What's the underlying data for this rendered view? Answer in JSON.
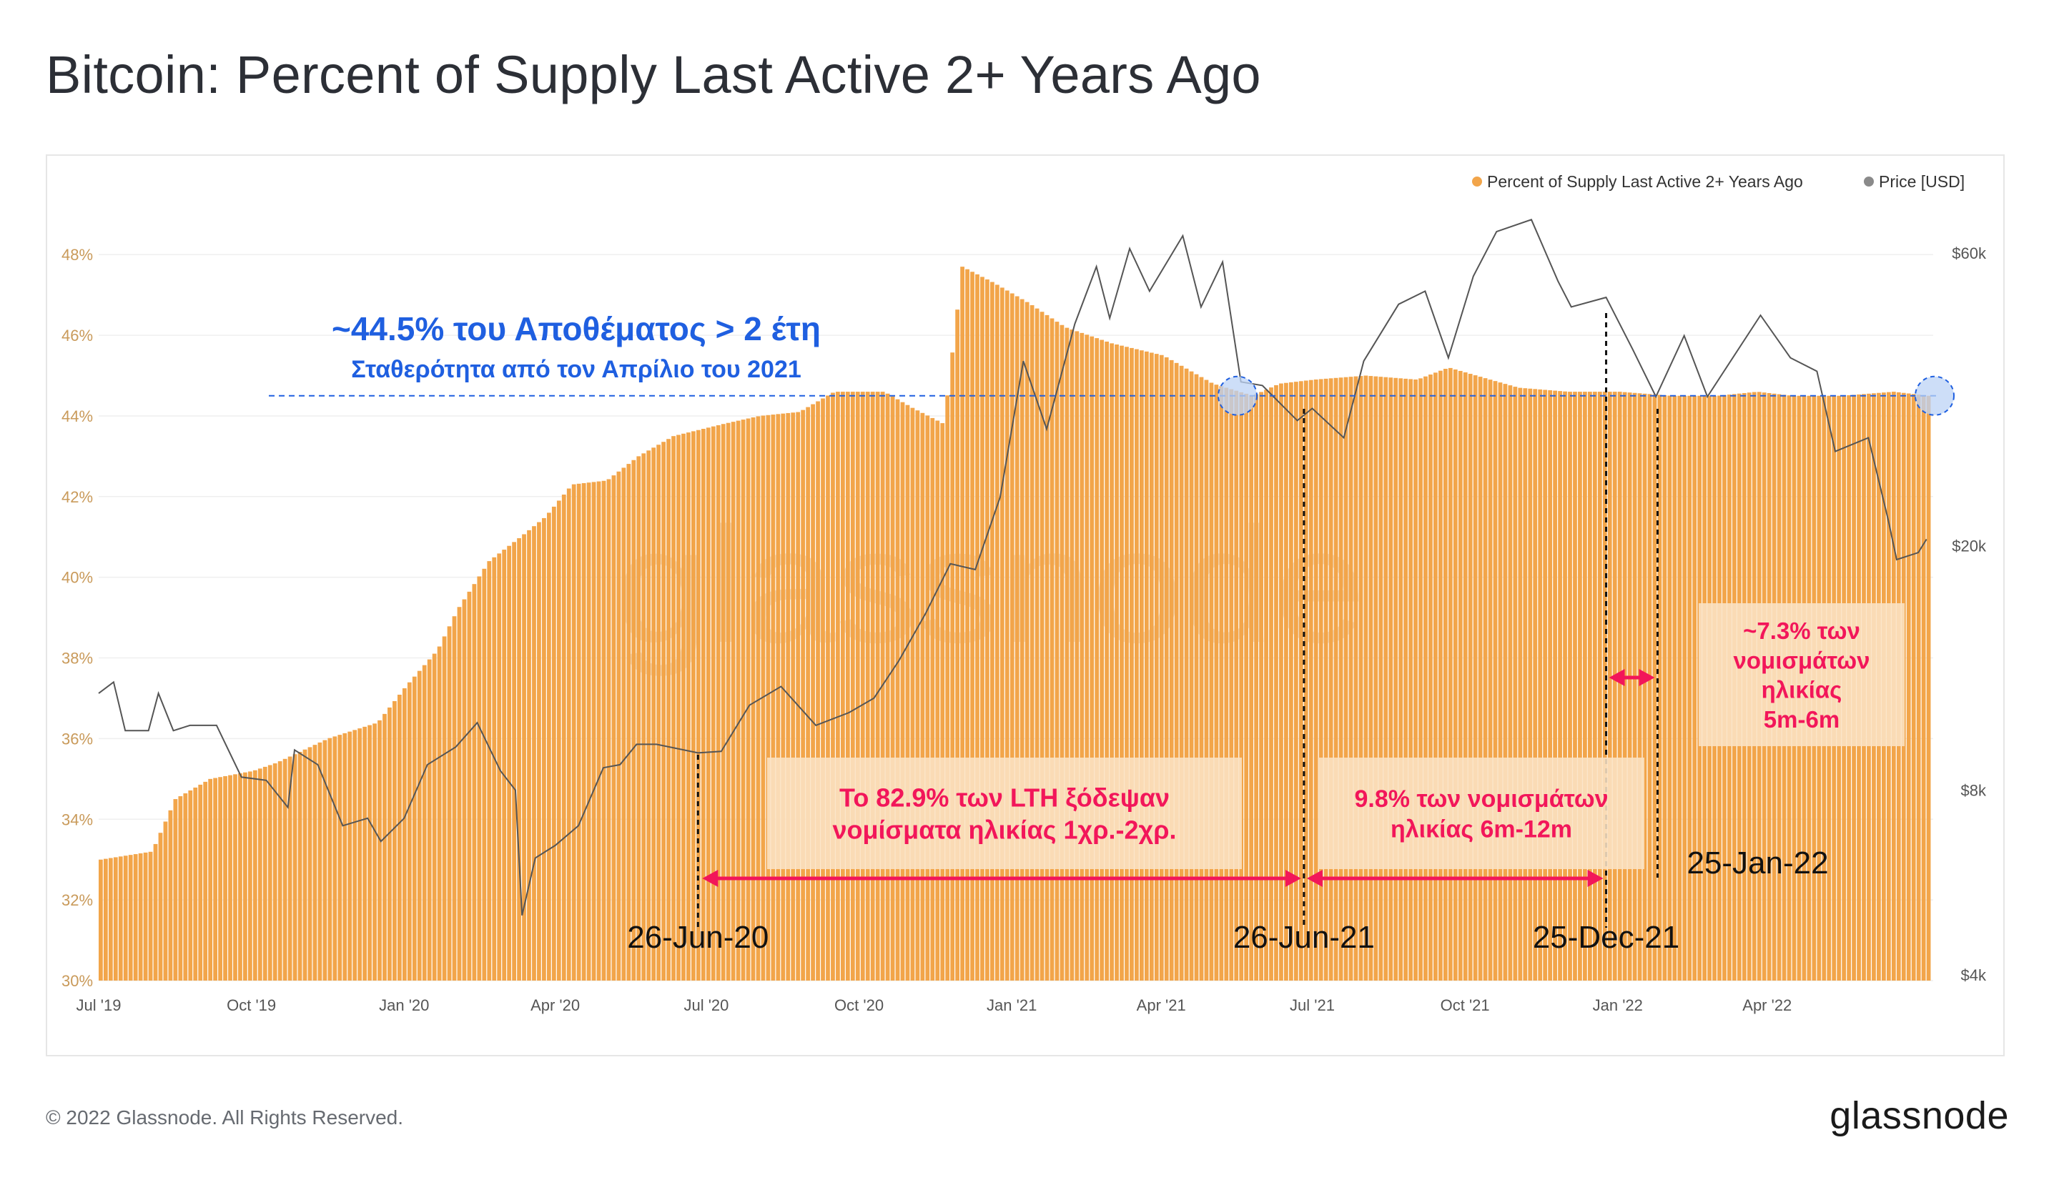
{
  "title": "Bitcoin: Percent of Supply Last Active 2+ Years Ago",
  "footer": {
    "copyright": "© 2022 Glassnode. All Rights Reserved.",
    "logo": "glassnode"
  },
  "watermark": "glassnode",
  "colors": {
    "supply": "#f2a54a",
    "price_line": "#555555",
    "price_dot": "#8a8a8a",
    "accent_blue": "#1f5fe0",
    "accent_pink": "#f2165a",
    "left_tick": "#c99a5a",
    "right_tick": "#555555"
  },
  "chart_data": {
    "type": "bar",
    "legend": [
      {
        "label": "Percent of Supply Last Active 2+ Years Ago",
        "color": "#f2a54a"
      },
      {
        "label": "Price [USD]",
        "color": "#8a8a8a"
      }
    ],
    "legend_position": "top-right",
    "x_ticks": [
      "Jul '19",
      "Oct '19",
      "Jan '20",
      "Apr '20",
      "Jul '20",
      "Oct '20",
      "Jan '21",
      "Apr '21",
      "Jul '21",
      "Oct '21",
      "Jan '22",
      "Apr '22"
    ],
    "y_left": {
      "ticks": [
        "30%",
        "32%",
        "34%",
        "36%",
        "38%",
        "40%",
        "42%",
        "44%",
        "46%",
        "48%"
      ],
      "range": [
        30,
        48.5
      ]
    },
    "y_right": {
      "ticks": [
        "$4k",
        "$8k",
        "$20k",
        "$60k"
      ],
      "scale": "log"
    },
    "x_range": [
      "2019-07-01",
      "2022-07-10"
    ],
    "supply_series": {
      "name": "Percent of Supply Last Active 2+ Years Ago",
      "points": [
        [
          "2019-07-01",
          33.0
        ],
        [
          "2019-08-01",
          33.2
        ],
        [
          "2019-08-15",
          34.5
        ],
        [
          "2019-09-05",
          35.0
        ],
        [
          "2019-10-01",
          35.2
        ],
        [
          "2019-10-15",
          35.4
        ],
        [
          "2019-11-15",
          36.0
        ],
        [
          "2019-12-15",
          36.4
        ],
        [
          "2020-01-01",
          37.3
        ],
        [
          "2020-01-20",
          38.2
        ],
        [
          "2020-02-01",
          39.2
        ],
        [
          "2020-02-20",
          40.4
        ],
        [
          "2020-03-10",
          41.0
        ],
        [
          "2020-03-25",
          41.5
        ],
        [
          "2020-04-10",
          42.3
        ],
        [
          "2020-05-01",
          42.4
        ],
        [
          "2020-05-20",
          43.0
        ],
        [
          "2020-06-10",
          43.5
        ],
        [
          "2020-07-10",
          43.8
        ],
        [
          "2020-08-01",
          44.0
        ],
        [
          "2020-08-25",
          44.1
        ],
        [
          "2020-09-15",
          44.6
        ],
        [
          "2020-10-15",
          44.6
        ],
        [
          "2020-11-01",
          44.2
        ],
        [
          "2020-11-20",
          43.8
        ],
        [
          "2020-12-01",
          47.7
        ],
        [
          "2020-12-20",
          47.3
        ],
        [
          "2021-01-10",
          46.8
        ],
        [
          "2021-02-01",
          46.2
        ],
        [
          "2021-03-01",
          45.8
        ],
        [
          "2021-04-01",
          45.5
        ],
        [
          "2021-05-01",
          44.8
        ],
        [
          "2021-05-25",
          44.5
        ],
        [
          "2021-06-10",
          44.8
        ],
        [
          "2021-07-01",
          44.9
        ],
        [
          "2021-08-01",
          45.0
        ],
        [
          "2021-09-01",
          44.9
        ],
        [
          "2021-09-20",
          45.2
        ],
        [
          "2021-10-15",
          44.9
        ],
        [
          "2021-11-01",
          44.7
        ],
        [
          "2021-12-01",
          44.6
        ],
        [
          "2022-01-01",
          44.6
        ],
        [
          "2022-02-01",
          44.5
        ],
        [
          "2022-03-01",
          44.5
        ],
        [
          "2022-03-25",
          44.6
        ],
        [
          "2022-04-15",
          44.5
        ],
        [
          "2022-05-15",
          44.5
        ],
        [
          "2022-06-15",
          44.6
        ],
        [
          "2022-07-06",
          44.5
        ]
      ]
    },
    "price_series": {
      "name": "Price [USD]",
      "points": [
        [
          "2019-07-01",
          11500
        ],
        [
          "2019-07-10",
          12000
        ],
        [
          "2019-07-17",
          10000
        ],
        [
          "2019-07-31",
          10000
        ],
        [
          "2019-08-06",
          11500
        ],
        [
          "2019-08-15",
          10000
        ],
        [
          "2019-08-25",
          10200
        ],
        [
          "2019-09-10",
          10200
        ],
        [
          "2019-09-25",
          8400
        ],
        [
          "2019-10-10",
          8300
        ],
        [
          "2019-10-23",
          7500
        ],
        [
          "2019-10-27",
          9300
        ],
        [
          "2019-11-10",
          8800
        ],
        [
          "2019-11-25",
          7000
        ],
        [
          "2019-12-10",
          7200
        ],
        [
          "2019-12-18",
          6600
        ],
        [
          "2020-01-01",
          7200
        ],
        [
          "2020-01-15",
          8800
        ],
        [
          "2020-02-01",
          9400
        ],
        [
          "2020-02-14",
          10300
        ],
        [
          "2020-02-28",
          8600
        ],
        [
          "2020-03-08",
          8000
        ],
        [
          "2020-03-12",
          5000
        ],
        [
          "2020-03-20",
          6200
        ],
        [
          "2020-04-01",
          6500
        ],
        [
          "2020-04-15",
          7000
        ],
        [
          "2020-04-30",
          8700
        ],
        [
          "2020-05-10",
          8800
        ],
        [
          "2020-05-20",
          9500
        ],
        [
          "2020-06-01",
          9500
        ],
        [
          "2020-06-26",
          9200
        ],
        [
          "2020-07-10",
          9250
        ],
        [
          "2020-07-27",
          11000
        ],
        [
          "2020-08-15",
          11800
        ],
        [
          "2020-09-05",
          10200
        ],
        [
          "2020-09-25",
          10700
        ],
        [
          "2020-10-10",
          11300
        ],
        [
          "2020-10-25",
          13000
        ],
        [
          "2020-11-10",
          15500
        ],
        [
          "2020-11-25",
          18700
        ],
        [
          "2020-12-10",
          18300
        ],
        [
          "2020-12-25",
          24000
        ],
        [
          "2021-01-08",
          40000
        ],
        [
          "2021-01-22",
          31000
        ],
        [
          "2021-02-08",
          46000
        ],
        [
          "2021-02-21",
          57000
        ],
        [
          "2021-03-01",
          47000
        ],
        [
          "2021-03-13",
          61000
        ],
        [
          "2021-03-25",
          52000
        ],
        [
          "2021-04-14",
          64000
        ],
        [
          "2021-04-25",
          49000
        ],
        [
          "2021-05-08",
          58000
        ],
        [
          "2021-05-19",
          37000
        ],
        [
          "2021-06-01",
          36500
        ],
        [
          "2021-06-22",
          32000
        ],
        [
          "2021-07-01",
          33500
        ],
        [
          "2021-07-20",
          30000
        ],
        [
          "2021-08-01",
          40000
        ],
        [
          "2021-08-22",
          49500
        ],
        [
          "2021-09-07",
          52000
        ],
        [
          "2021-09-21",
          40500
        ],
        [
          "2021-10-06",
          55000
        ],
        [
          "2021-10-20",
          65000
        ],
        [
          "2021-11-10",
          68000
        ],
        [
          "2021-11-26",
          54000
        ],
        [
          "2021-12-04",
          49000
        ],
        [
          "2021-12-25",
          50800
        ],
        [
          "2022-01-10",
          41800
        ],
        [
          "2022-01-24",
          35000
        ],
        [
          "2022-02-10",
          44000
        ],
        [
          "2022-02-24",
          35000
        ],
        [
          "2022-03-28",
          47500
        ],
        [
          "2022-04-15",
          40500
        ],
        [
          "2022-05-01",
          38500
        ],
        [
          "2022-05-12",
          28500
        ],
        [
          "2022-06-01",
          30000
        ],
        [
          "2022-06-13",
          22000
        ],
        [
          "2022-06-18",
          19000
        ],
        [
          "2022-07-01",
          19500
        ],
        [
          "2022-07-06",
          20500
        ]
      ]
    },
    "reference_line": {
      "y": 44.5
    },
    "annotations": {
      "blue_headline": "~44.5% του Αποθέματος > 2 έτη",
      "blue_subline": "Σταθερότητα από τον Απρίλιο του 2021",
      "dates": [
        {
          "date": "2020-06-26",
          "label": "26-Jun-20"
        },
        {
          "date": "2021-06-26",
          "label": "26-Jun-21"
        },
        {
          "date": "2021-12-25",
          "label": "25-Dec-21"
        },
        {
          "date": "2022-01-25",
          "label": "25-Jan-22"
        }
      ],
      "box1": {
        "line1": "Το 82.9% των LTH ξόδεψαν",
        "line2": "νομίσματα ηλικίας 1χρ.-2χρ."
      },
      "box2": {
        "line1": "9.8% των νομισμάτων",
        "line2": "ηλικίας 6m-12m"
      },
      "box3": {
        "line1": "~7.3% των",
        "line2": "νομισμάτων",
        "line3": "ηλικίας",
        "line4": "5m-6m"
      }
    }
  }
}
